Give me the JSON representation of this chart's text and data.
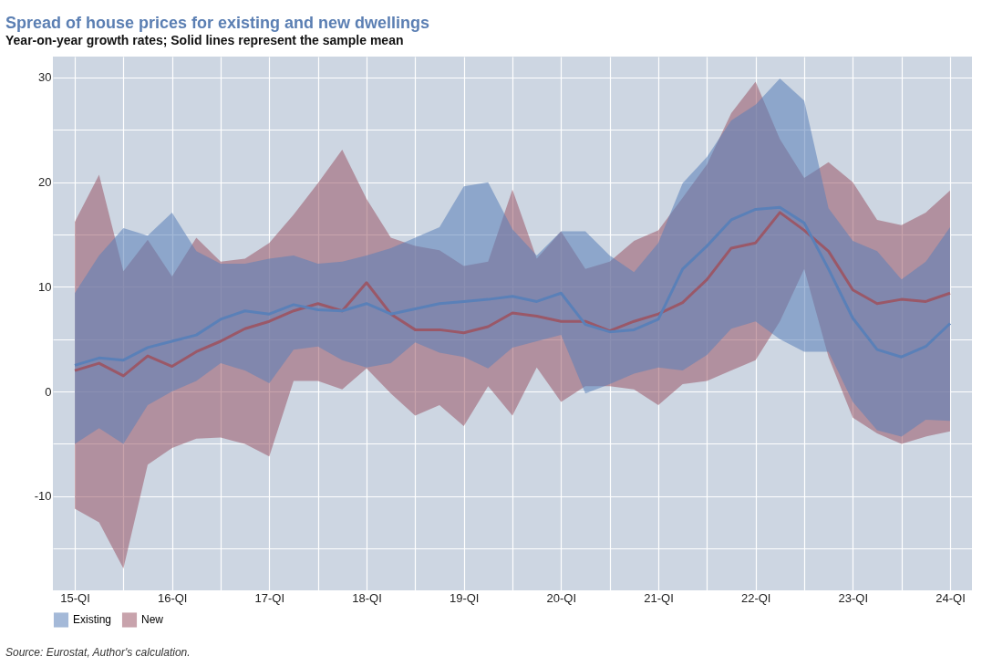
{
  "chart_data": {
    "type": "line",
    "title": "Spread of house prices for existing and new dwellings",
    "subtitle": "Year-on-year growth rates; Solid lines represent the sample mean",
    "categories": [
      "15-QI",
      null,
      null,
      null,
      "16-QI",
      null,
      null,
      null,
      "17-QI",
      null,
      null,
      null,
      "18-QI",
      null,
      null,
      null,
      "19-QI",
      null,
      null,
      null,
      "20-QI",
      null,
      null,
      null,
      "21-QI",
      null,
      null,
      null,
      "22-QI",
      null,
      null,
      null,
      "23-QI",
      null,
      null,
      null,
      "24-QI"
    ],
    "series": [
      {
        "name": "Existing",
        "color": "#5a80b8",
        "values": [
          2.5,
          3.2,
          3.0,
          4.2,
          4.8,
          5.4,
          6.9,
          7.7,
          7.4,
          8.3,
          7.8,
          7.7,
          8.4,
          7.4,
          7.9,
          8.4,
          8.6,
          8.8,
          9.1,
          8.6,
          9.4,
          6.4,
          5.7,
          5.9,
          6.9,
          11.7,
          13.9,
          16.4,
          17.4,
          17.6,
          16.1,
          11.7,
          7.0,
          4.0,
          3.3,
          4.3,
          6.5
        ],
        "lower": [
          -5.0,
          -3.5,
          -5.0,
          -1.3,
          0.0,
          1.0,
          2.7,
          2.0,
          0.8,
          4.0,
          4.3,
          3.0,
          2.3,
          2.7,
          4.7,
          3.7,
          3.3,
          2.2,
          4.2,
          4.8,
          5.4,
          -0.2,
          0.7,
          1.7,
          2.3,
          2.0,
          3.5,
          6.0,
          6.7,
          5.0,
          3.8,
          3.8,
          -1.0,
          -3.7,
          -4.3,
          -2.7,
          -2.8
        ],
        "upper": [
          9.4,
          13.0,
          15.6,
          14.9,
          17.1,
          13.4,
          12.2,
          12.2,
          12.7,
          13.0,
          12.2,
          12.4,
          13.0,
          13.7,
          14.7,
          15.7,
          19.6,
          20.0,
          15.5,
          13.0,
          15.3,
          15.3,
          13.0,
          11.4,
          14.2,
          19.9,
          22.4,
          25.9,
          27.4,
          29.9,
          27.8,
          17.5,
          14.4,
          13.4,
          10.7,
          12.4,
          15.7
        ]
      },
      {
        "name": "New",
        "color": "#9a5868",
        "values": [
          2.0,
          2.7,
          1.5,
          3.4,
          2.4,
          3.8,
          4.8,
          6.0,
          6.7,
          7.7,
          8.4,
          7.7,
          10.4,
          7.4,
          5.9,
          5.9,
          5.6,
          6.2,
          7.5,
          7.2,
          6.7,
          6.7,
          5.8,
          6.7,
          7.4,
          8.5,
          10.7,
          13.7,
          14.2,
          17.1,
          15.4,
          13.4,
          9.7,
          8.4,
          8.8,
          8.6,
          9.4
        ],
        "lower": [
          -11.2,
          -12.5,
          -16.9,
          -7.0,
          -5.4,
          -4.5,
          -4.4,
          -5.0,
          -6.2,
          1.0,
          1.0,
          0.2,
          2.2,
          -0.2,
          -2.3,
          -1.3,
          -3.3,
          0.5,
          -2.3,
          2.3,
          -1.0,
          0.5,
          0.5,
          0.2,
          -1.3,
          0.7,
          1.0,
          2.0,
          3.0,
          6.7,
          11.7,
          3.3,
          -2.5,
          -4.0,
          -5.0,
          -4.3,
          -3.8
        ],
        "upper": [
          16.2,
          20.7,
          11.5,
          14.5,
          11.0,
          14.7,
          12.4,
          12.7,
          14.2,
          16.9,
          19.9,
          23.1,
          18.4,
          14.7,
          13.9,
          13.5,
          12.0,
          12.4,
          19.3,
          12.7,
          15.3,
          11.7,
          12.4,
          14.4,
          15.4,
          18.5,
          21.7,
          26.6,
          29.6,
          24.1,
          20.4,
          21.9,
          20.0,
          16.4,
          15.9,
          17.1,
          19.2
        ]
      }
    ],
    "ylim": [
      -19,
      32
    ],
    "yticks": [
      {
        "value": -15,
        "label": null
      },
      -10,
      {
        "value": -5,
        "label": null
      },
      0,
      {
        "value": 5,
        "label": null
      },
      10,
      {
        "value": 15,
        "label": null
      },
      20,
      {
        "value": 25,
        "label": null
      },
      30
    ],
    "grid": true,
    "legend": "bottom left",
    "annotations": [
      "Source: Eurostat, Author's calculation."
    ]
  }
}
